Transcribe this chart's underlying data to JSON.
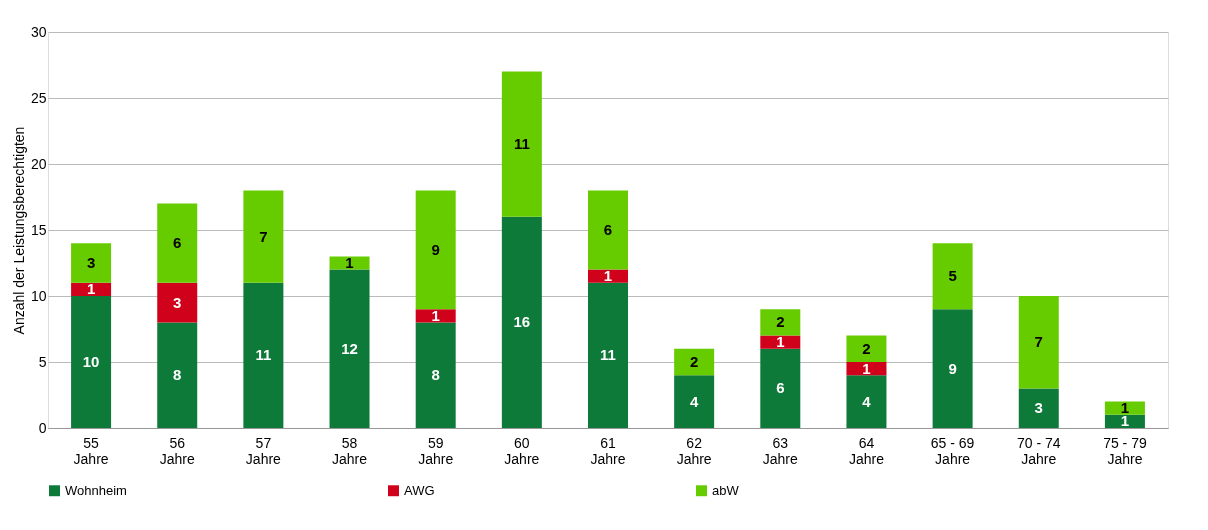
{
  "chart_data": {
    "type": "bar",
    "stacked": true,
    "ylabel": "Anzahl der Leistungsberechtigten",
    "categories": [
      "55 Jahre",
      "56 Jahre",
      "57 Jahre",
      "58 Jahre",
      "59 Jahre",
      "60 Jahre",
      "61 Jahre",
      "62 Jahre",
      "63 Jahre",
      "64 Jahre",
      "65 - 69 Jahre",
      "70 - 74 Jahre",
      "75 - 79 Jahre"
    ],
    "series": [
      {
        "name": "Wohnheim",
        "color": "#0e7a3a",
        "values": [
          10,
          8,
          11,
          12,
          8,
          16,
          11,
          4,
          6,
          4,
          9,
          3,
          1
        ]
      },
      {
        "name": "AWG",
        "color": "#d0021b",
        "values": [
          1,
          3,
          null,
          null,
          1,
          null,
          1,
          null,
          1,
          1,
          null,
          null,
          null
        ]
      },
      {
        "name": "abW",
        "color": "#66cc00",
        "values": [
          3,
          6,
          7,
          1,
          9,
          11,
          6,
          2,
          2,
          2,
          5,
          7,
          1
        ]
      }
    ],
    "ylim": [
      0,
      30
    ],
    "yticks": [
      0,
      5,
      10,
      15,
      20,
      25,
      30
    ],
    "grid": "y",
    "legend": "bottom",
    "data_labels": true
  }
}
